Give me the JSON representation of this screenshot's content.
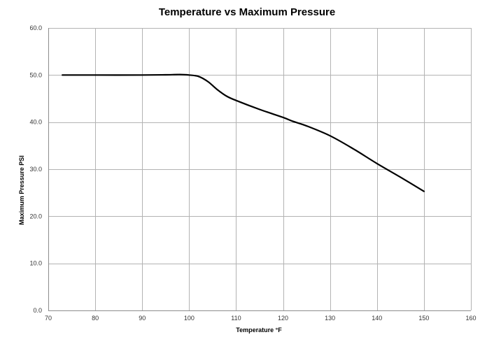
{
  "chart_data": {
    "type": "line",
    "title": "Temperature vs Maximum Pressure",
    "xlabel": "Temperature °F",
    "ylabel": "Maximum Pressure PSI",
    "xlim": [
      70,
      160
    ],
    "ylim": [
      0,
      60
    ],
    "x_ticks": [
      70,
      80,
      90,
      100,
      110,
      120,
      130,
      140,
      150,
      160
    ],
    "x_tick_labels": [
      "70",
      "80",
      "90",
      "100",
      "110",
      "120",
      "130",
      "140",
      "150",
      "160"
    ],
    "y_ticks": [
      0,
      10,
      20,
      30,
      40,
      50,
      60
    ],
    "y_tick_labels": [
      "0.0",
      "10.0",
      "20.0",
      "30.0",
      "40.0",
      "50.0",
      "60.0"
    ],
    "grid": true,
    "legend": "none",
    "series": [
      {
        "name": "Maximum Pressure",
        "color": "#000000",
        "x": [
          73,
          80,
          90,
          95,
          98,
          100,
          102,
          104,
          106,
          108,
          110,
          115,
          120,
          122,
          125,
          130,
          135,
          140,
          145,
          150
        ],
        "y": [
          50.0,
          50.0,
          50.0,
          50.05,
          50.1,
          50.0,
          49.7,
          48.6,
          46.9,
          45.5,
          44.6,
          42.7,
          41.0,
          40.2,
          39.2,
          37.1,
          34.3,
          31.2,
          28.3,
          25.3
        ]
      }
    ]
  }
}
